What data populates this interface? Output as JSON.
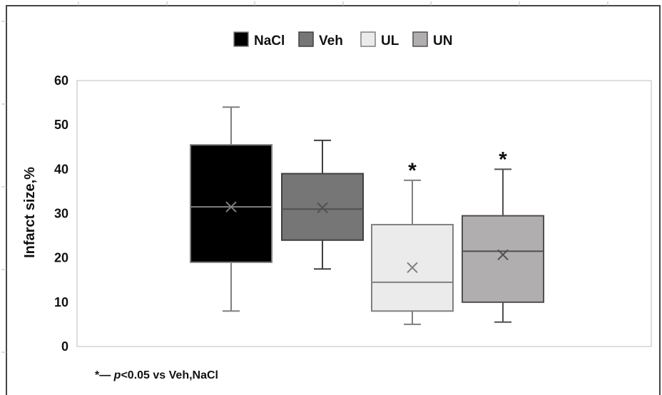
{
  "chart_data": {
    "type": "box",
    "title": "",
    "ylabel": "Infarct size,%",
    "xlabel": "",
    "ylim": [
      0,
      60
    ],
    "yticks": [
      0,
      10,
      20,
      30,
      40,
      50,
      60
    ],
    "grid": false,
    "legend_position": "top",
    "series": [
      {
        "name": "NaCl",
        "color": "#000000",
        "border": "#7f7f7f",
        "median_color": "#7f7f7f",
        "mean_color": "#7f7f7f",
        "whisker_low": 8,
        "q1": 19,
        "median": 31.5,
        "q3": 45.5,
        "whisker_high": 54,
        "mean": 31.5,
        "significant": false
      },
      {
        "name": "Veh",
        "color": "#767676",
        "border": "#404040",
        "median_color": "#505050",
        "mean_color": "#505050",
        "whisker_low": 17.5,
        "q1": 24,
        "median": 31,
        "q3": 39,
        "whisker_high": 46.5,
        "mean": 31.3,
        "significant": false
      },
      {
        "name": "UL",
        "color": "#ebebeb",
        "border": "#808080",
        "median_color": "#808080",
        "mean_color": "#808080",
        "whisker_low": 5,
        "q1": 8,
        "median": 14.5,
        "q3": 27.5,
        "whisker_high": 37.5,
        "mean": 17.8,
        "significant": true
      },
      {
        "name": "UN",
        "color": "#b0aeae",
        "border": "#505050",
        "median_color": "#505050",
        "mean_color": "#505050",
        "whisker_low": 5.5,
        "q1": 10,
        "median": 21.5,
        "q3": 29.5,
        "whisker_high": 40,
        "mean": 20.7,
        "significant": true
      }
    ],
    "significance_marker": "*",
    "footnote": {
      "marker": "*— ",
      "p_symbol": "p",
      "text": "<0.05 vs Veh,NaCl"
    }
  }
}
